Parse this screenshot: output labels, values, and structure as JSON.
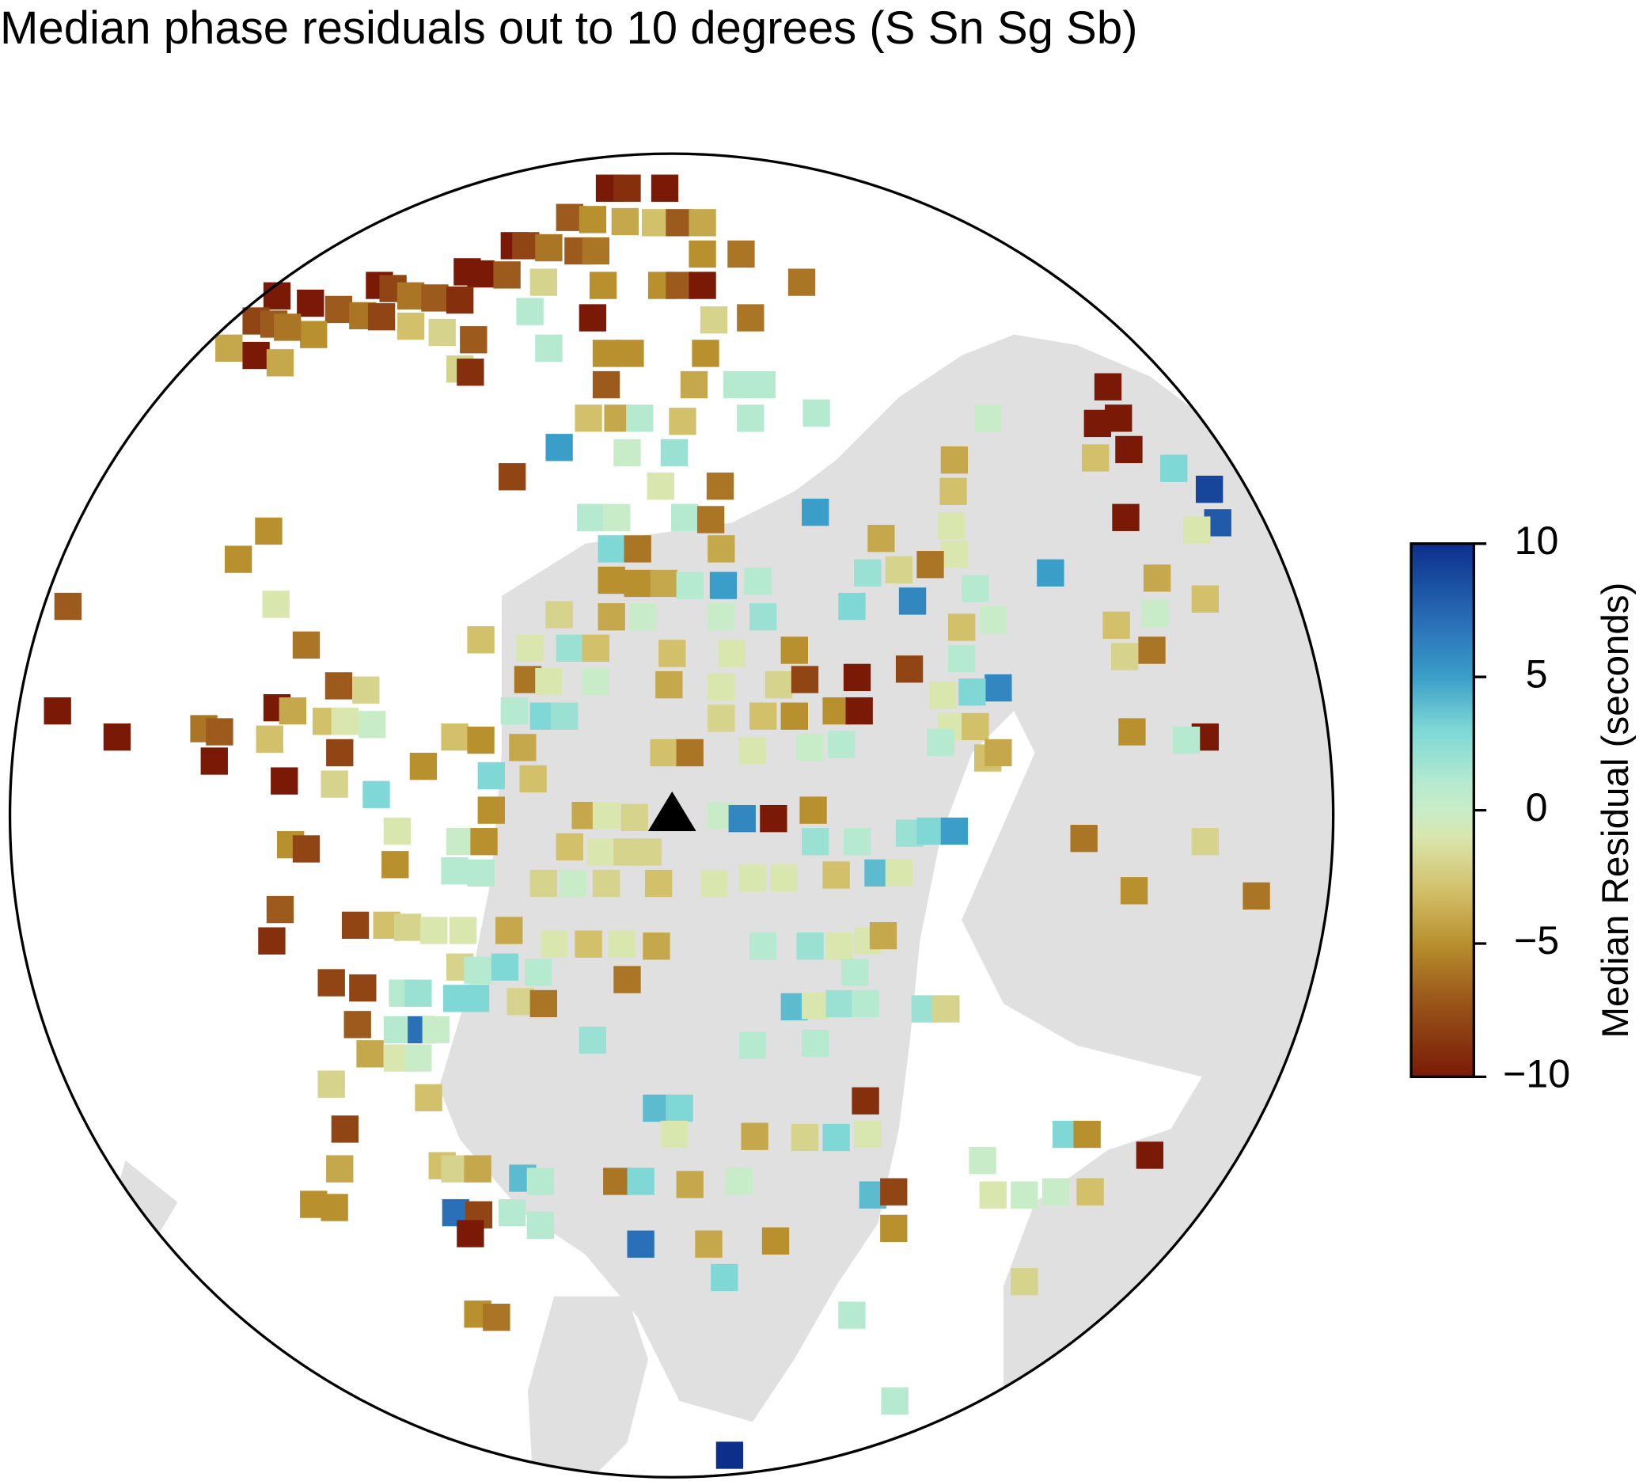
{
  "chart_data": {
    "type": "map",
    "title": "Median phase residuals out to 10 degrees (S Sn Sg Sb)",
    "colorbar_label": "Median Residual (seconds)",
    "clim": [
      -10,
      10
    ],
    "cticks": [
      {
        "value": -10,
        "label": "−10"
      },
      {
        "value": -5,
        "label": "−5"
      },
      0,
      5,
      10
    ],
    "values": [
      -10,
      -9,
      -10,
      -7,
      -5,
      -4,
      -3,
      -7,
      -4,
      -10,
      -8,
      -6,
      -7,
      -6,
      -10,
      -10,
      -7,
      -2,
      -5,
      -5,
      -7,
      -10,
      -6,
      -6,
      -5,
      -10,
      -8,
      -6,
      -7,
      -9,
      -10,
      -8,
      -7,
      -10,
      -7,
      -6,
      -8,
      -3,
      -2,
      -7,
      -5,
      -6,
      -4,
      -10,
      -4,
      1,
      -10,
      -2,
      -6,
      1,
      -5,
      -5,
      -5,
      -2,
      -9,
      -7,
      -4,
      1,
      1,
      -3,
      -4,
      1,
      -3,
      1,
      1,
      0,
      5,
      0,
      2,
      -8,
      -1,
      -6,
      -10,
      -10,
      -10,
      -10,
      -3,
      3,
      9,
      1,
      0,
      1,
      -6,
      5,
      -4,
      -3,
      -1,
      -10,
      8,
      -1,
      -5,
      -5,
      3,
      -6,
      -4,
      -4,
      -1,
      5,
      -4,
      -3,
      -7,
      -1,
      -5,
      -5,
      -4,
      1,
      5,
      1,
      2,
      -2,
      -6,
      1,
      -6,
      -3,
      -2,
      -4,
      0,
      0,
      2,
      3,
      6,
      -3,
      0,
      -3,
      0,
      -6,
      -2,
      -10,
      -10,
      -10,
      -10,
      -10,
      -4,
      -7,
      -2,
      -1,
      2,
      -3,
      -3,
      -1,
      -5,
      -10,
      -8,
      1,
      -6,
      -1,
      0,
      -4,
      -1,
      -2,
      -8,
      6,
      3,
      -1,
      1,
      3,
      2,
      -2,
      -3,
      -5,
      -5,
      -10,
      -1,
      -3,
      -5,
      -10,
      1,
      -6,
      -7,
      -3,
      -3,
      -1,
      0,
      -8,
      -3,
      -5,
      -4,
      -5,
      3,
      -3,
      -3,
      -6,
      -1,
      0,
      1,
      1,
      -3,
      -4,
      -2,
      3,
      -1,
      -5,
      -4,
      -1,
      -2,
      0,
      6,
      -10,
      -5,
      2,
      1,
      2,
      3,
      5,
      -6,
      -2,
      -5,
      -8,
      0,
      -5,
      -3,
      -1,
      -2,
      -2,
      -5,
      1,
      1,
      -2,
      0,
      -2,
      -3,
      -1,
      -1,
      -1,
      -3,
      4,
      -1,
      -5,
      -6,
      -7,
      -3,
      -2,
      -1,
      -1,
      -4,
      -1,
      -3,
      -1,
      -4,
      1,
      2,
      -1,
      -1,
      -4,
      -9,
      -8,
      -2,
      1,
      3,
      1,
      -6,
      1,
      -8,
      -8,
      1,
      2,
      3,
      3,
      -2,
      -6,
      4,
      -1,
      2,
      1,
      2,
      -2,
      -7,
      1,
      7,
      0,
      -4,
      -1,
      0,
      2,
      1,
      1,
      -2,
      -3,
      -9,
      4,
      3,
      -8,
      -1,
      -4,
      -2,
      3,
      -1,
      0,
      3,
      -5,
      -10,
      -4,
      -3,
      -2,
      -4,
      4,
      1,
      -6,
      3,
      -4,
      0,
      4,
      -8,
      -1,
      0,
      0,
      -3,
      -5,
      -5,
      7,
      -8,
      1,
      1,
      -5,
      -10,
      7,
      -4,
      -5,
      3,
      -2,
      -5,
      -6,
      1,
      1,
      10
    ]
  }
}
